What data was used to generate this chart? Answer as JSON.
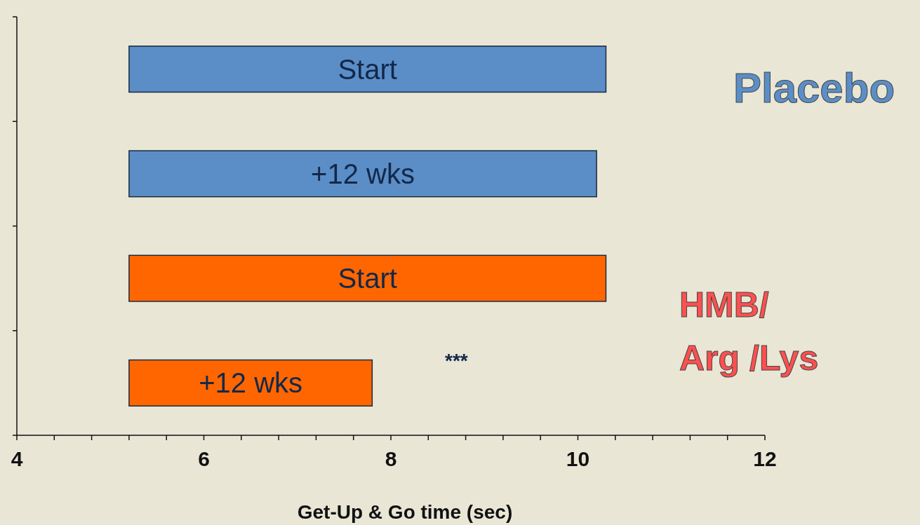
{
  "chart_data": {
    "type": "bar",
    "orientation": "horizontal",
    "xlabel": "Get-Up & Go time (sec)",
    "categories": [
      "Start",
      "+12 wks",
      "Start",
      "+12 wks"
    ],
    "values": [
      5.1,
      5.0,
      5.1,
      2.6
    ],
    "colors": [
      "#5b8ec6",
      "#5b8ec6",
      "#ff6600",
      "#ff6600"
    ],
    "base": [
      5.2,
      5.2,
      5.2,
      5.2
    ],
    "xlim": [
      4,
      12
    ],
    "xticks": [
      4,
      {
        "value": 4.4,
        "label": null
      },
      {
        "value": 4.8,
        "label": null
      },
      {
        "value": 5.2,
        "label": null
      },
      {
        "value": 5.6,
        "label": null
      },
      6,
      {
        "value": 6.4,
        "label": null
      },
      {
        "value": 6.8,
        "label": null
      },
      {
        "value": 7.2,
        "label": null
      },
      {
        "value": 7.6,
        "label": null
      },
      8,
      {
        "value": 8.4,
        "label": null
      },
      {
        "value": 8.8,
        "label": null
      },
      {
        "value": 9.2,
        "label": null
      },
      {
        "value": 9.6,
        "label": null
      },
      10,
      {
        "value": 10.4,
        "label": null
      },
      {
        "value": 10.8,
        "label": null
      },
      {
        "value": 11.2,
        "label": null
      },
      {
        "value": 11.6,
        "label": null
      },
      12
    ],
    "annotations": [
      "Placebo",
      "HMB/ Arg /Lys",
      "***"
    ],
    "grid": false
  }
}
